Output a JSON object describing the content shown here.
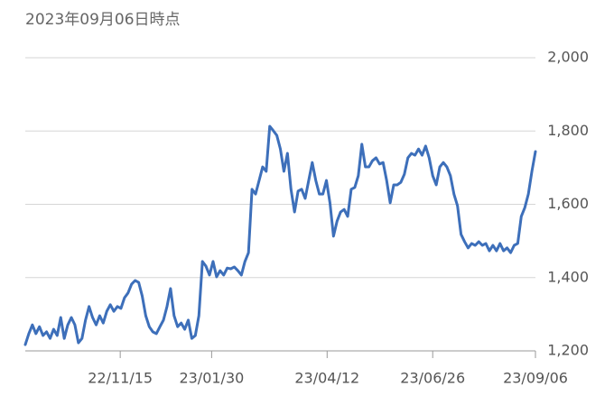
{
  "chart_data": {
    "type": "line",
    "title": "2023年09月06日時点",
    "values": [
      1217,
      1247,
      1271,
      1247,
      1266,
      1242,
      1252,
      1234,
      1259,
      1242,
      1291,
      1234,
      1271,
      1291,
      1271,
      1222,
      1234,
      1284,
      1321,
      1291,
      1271,
      1296,
      1276,
      1308,
      1326,
      1308,
      1321,
      1316,
      1345,
      1358,
      1382,
      1392,
      1387,
      1350,
      1296,
      1266,
      1252,
      1247,
      1266,
      1284,
      1321,
      1370,
      1296,
      1266,
      1276,
      1259,
      1284,
      1234,
      1242,
      1296,
      1444,
      1431,
      1407,
      1444,
      1402,
      1419,
      1407,
      1426,
      1424,
      1429,
      1419,
      1407,
      1444,
      1468,
      1641,
      1628,
      1665,
      1702,
      1690,
      1813,
      1801,
      1788,
      1751,
      1690,
      1739,
      1641,
      1579,
      1636,
      1641,
      1616,
      1665,
      1714,
      1665,
      1628,
      1628,
      1665,
      1604,
      1513,
      1554,
      1579,
      1586,
      1567,
      1641,
      1646,
      1678,
      1764,
      1702,
      1702,
      1719,
      1727,
      1710,
      1714,
      1665,
      1604,
      1653,
      1653,
      1660,
      1682,
      1727,
      1739,
      1734,
      1751,
      1734,
      1759,
      1727,
      1678,
      1653,
      1702,
      1714,
      1702,
      1678,
      1628,
      1596,
      1518,
      1498,
      1481,
      1493,
      1488,
      1498,
      1488,
      1493,
      1473,
      1488,
      1473,
      1493,
      1473,
      1481,
      1468,
      1488,
      1493,
      1567,
      1591,
      1628,
      1690,
      1744
    ],
    "color": "#3d6fba",
    "xlim": [
      0,
      144
    ],
    "xticks": [
      {
        "value": 26.8,
        "label": "22/11/15"
      },
      {
        "value": 52.6,
        "label": "23/01/30"
      },
      {
        "value": 85.2,
        "label": "23/04/12"
      },
      {
        "value": 115,
        "label": "23/06/26"
      },
      {
        "value": 144,
        "label": "23/09/06"
      }
    ],
    "ylim": [
      1200,
      2000
    ],
    "yticks": [
      {
        "value": 1200,
        "label": "1,200"
      },
      {
        "value": 1400,
        "label": "1,400"
      },
      {
        "value": 1600,
        "label": "1,600"
      },
      {
        "value": 1800,
        "label": "1,800"
      },
      {
        "value": 2000,
        "label": "2,000"
      }
    ],
    "grid": true
  }
}
